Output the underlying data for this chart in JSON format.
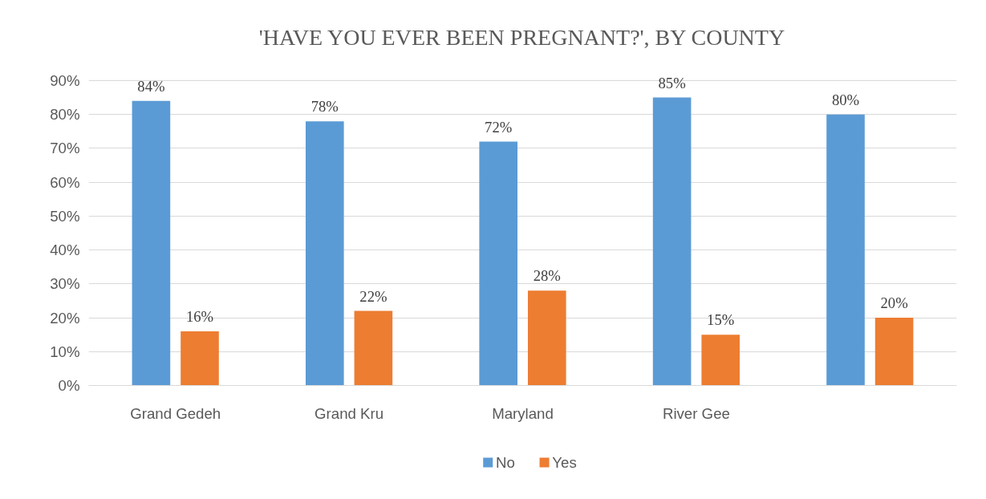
{
  "chart_data": {
    "type": "bar",
    "title": "'HAVE YOU EVER BEEN PREGNANT?', BY COUNTY",
    "categories": [
      "Grand Gedeh",
      "Grand Kru",
      "Maryland",
      "River Gee",
      null
    ],
    "series": [
      {
        "name": "No",
        "color": "#5b9bd5",
        "values": [
          84,
          78,
          72,
          85,
          80
        ],
        "value_labels": [
          "84%",
          "78%",
          "72%",
          "85%",
          "80%"
        ]
      },
      {
        "name": "Yes",
        "color": "#ed7d31",
        "values": [
          16,
          22,
          28,
          15,
          20
        ],
        "value_labels": [
          "16%",
          "22%",
          "28%",
          "15%",
          "20%"
        ]
      }
    ],
    "ylim": [
      0,
      90
    ],
    "yticks": [
      {
        "value": 0,
        "label": "0%"
      },
      {
        "value": 10,
        "label": "10%"
      },
      {
        "value": 20,
        "label": "20%"
      },
      {
        "value": 30,
        "label": "30%"
      },
      {
        "value": 40,
        "label": "40%"
      },
      {
        "value": 50,
        "label": "50%"
      },
      {
        "value": 60,
        "label": "60%"
      },
      {
        "value": 70,
        "label": "70%"
      },
      {
        "value": 80,
        "label": "80%"
      },
      {
        "value": 90,
        "label": "90%"
      }
    ],
    "grid": "y",
    "legend": "bottom"
  }
}
